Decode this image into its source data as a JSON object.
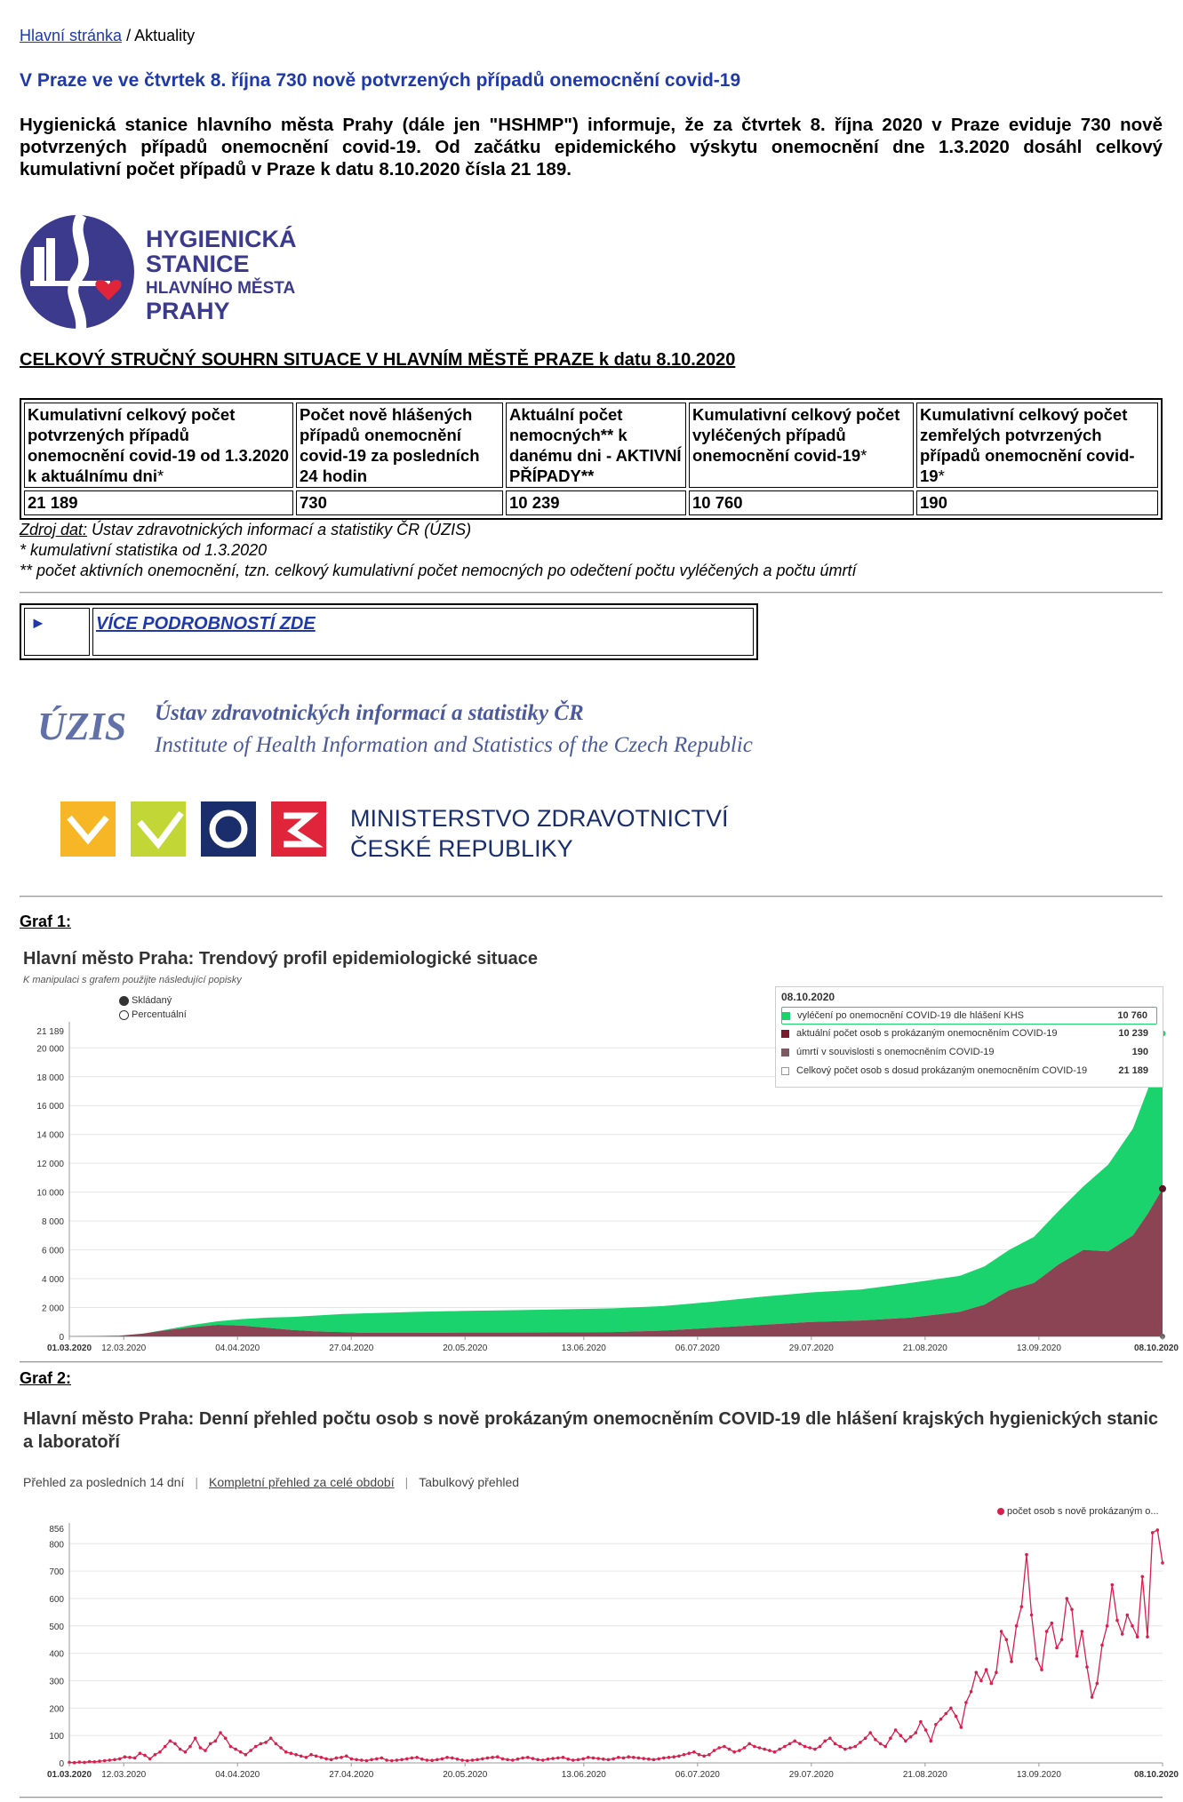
{
  "breadcrumb": {
    "home": "Hlavní stránka",
    "sep": "/",
    "current": "Aktuality"
  },
  "article": {
    "title": "V Praze ve ve čtvrtek 8. října 730 nově potvrzených případů onemocnění covid-19",
    "lead": "Hygienická stanice hlavního města Prahy (dále jen \"HSHMP\") informuje, že za čtvrtek 8. října 2020 v Praze eviduje 730 nově potvrzených případů onemocnění covid-19. Od začátku epidemického výskytu onemocnění dne 1.3.2020 dosáhl celkový kumulativní počet případů v Praze k datu 8.10.2020 čísla 21 189."
  },
  "hs_logo": {
    "line1": "HYGIENICKÁ",
    "line2": "STANICE",
    "line3": "HLAVNÍHO MĚSTA",
    "line4": "PRAHY",
    "colors": {
      "text": "#3b3a8c",
      "circle": "#3b3a8c",
      "heart": "#e0243a"
    }
  },
  "summary": {
    "heading": "CELKOVÝ STRUČNÝ SOUHRN SITUACE V HLAVNÍM MĚSTĚ PRAZE k datu 8.10.2020",
    "headers": [
      {
        "text": "Kumulativní celkový počet potvrzených případů onemocnění covid-19 od 1.3.2020 k aktuálnímu dni",
        "mark": "*"
      },
      {
        "text": "Počet nově hlášených případů onemocnění covid-19 za posledních 24 hodin",
        "mark": ""
      },
      {
        "text": "Aktuální počet nemocných** k danému dni  - AKTIVNÍ PŘÍPADY**",
        "mark": ""
      },
      {
        "text": "Kumulativní celkový počet vyléčených případů onemocnění covid-19",
        "mark": "*"
      },
      {
        "text": "Kumulativní celkový počet zemřelých potvrzených případů onemocnění covid-19",
        "mark": "*"
      }
    ],
    "values": [
      "21 189",
      "730",
      "10 239",
      "10 760",
      "190"
    ]
  },
  "notes": {
    "source_label": "Zdroj dat:",
    "source_text": " Ústav zdravotnických informací a statistiky ČR (ÚZIS)",
    "note1": "* kumulativní statistika od 1.3.2020",
    "note2": "** počet aktivních onemocnění, tzn. celkový kumulativní počet nemocných po odečtení počtu vyléčených a počtu úmrtí"
  },
  "more": {
    "arrow": "►",
    "label": "VÍCE PODROBNOSTÍ ZDE"
  },
  "uzis": {
    "abbr": "ÚZIS",
    "line1": "Ústav zdravotnických informací a statistiky ČR",
    "line2": "Institute of Health Information and Statistics of the Czech Republic"
  },
  "mzcr": {
    "line1": "MINISTERSTVO ZDRAVOTNICTVÍ",
    "line2": "ČESKÉ REPUBLIKY"
  },
  "graf1": {
    "label": "Graf 1:",
    "title": "Hlavní město Praha: Trendový profil epidemiologické situace",
    "subtitle": "K manipulaci s grafem použijte následující popisky",
    "radio_stacked": "Skládaný",
    "radio_percent": "Percentuální",
    "legend": {
      "date": "08.10.2020",
      "rows": [
        {
          "name": "vyléčení po onemocnění COVID-19 dle hlášení KHS",
          "value": "10 760",
          "color": "#1bd36c"
        },
        {
          "name": "aktuální počet osob s prokázaným onemocněním COVID-19",
          "value": "10 239",
          "color": "#7a1a2e"
        },
        {
          "name": "úmrtí v souvislosti s onemocněním COVID-19",
          "value": "190",
          "color": "#7b5a62"
        },
        {
          "name": "Celkový počet osob s dosud prokázaným onemocněním COVID-19",
          "value": "21 189",
          "color": "#ffffff"
        }
      ]
    }
  },
  "graf2": {
    "label": "Graf 2:",
    "title": "Hlavní město Praha: Denní přehled počtu osob s nově prokázaným onemocněním COVID-19 dle hlášení krajských hygienických stanic a laboratoří",
    "tabs": [
      "Přehled za posledních 14 dní",
      "Kompletní přehled za celé období",
      "Tabulkový přehled"
    ],
    "legend": "počet osob s nově prokázaným o..."
  },
  "chart_data": [
    {
      "type": "area",
      "title": "Hlavní město Praha: Trendový profil epidemiologické situace",
      "x_ticks": [
        "01.03.2020",
        "12.03.2020",
        "04.04.2020",
        "27.04.2020",
        "20.05.2020",
        "13.06.2020",
        "06.07.2020",
        "29.07.2020",
        "21.08.2020",
        "13.09.2020",
        "08.10.2020"
      ],
      "x_tick_days": [
        0,
        11,
        34,
        57,
        80,
        104,
        127,
        150,
        173,
        196,
        221
      ],
      "y_ticks": [
        0,
        2000,
        4000,
        6000,
        8000,
        10000,
        12000,
        14000,
        16000,
        18000,
        20000
      ],
      "y_ticks_labels": [
        "0",
        "2 000",
        "4 000",
        "6 000",
        "8 000",
        "10 000",
        "12 000",
        "14 000",
        "16 000",
        "18 000",
        "20 000"
      ],
      "y_max_label": "21 189",
      "ylim": [
        0,
        21189
      ],
      "series": [
        {
          "name": "aktuální počet osob s prokázaným onemocněním COVID-19",
          "x": [
            0,
            5,
            10,
            15,
            20,
            25,
            30,
            35,
            40,
            45,
            50,
            55,
            60,
            70,
            80,
            90,
            100,
            110,
            120,
            130,
            140,
            150,
            160,
            170,
            180,
            185,
            190,
            195,
            200,
            205,
            210,
            215,
            218,
            221
          ],
          "values": [
            0,
            20,
            50,
            200,
            450,
            650,
            800,
            750,
            600,
            450,
            350,
            300,
            250,
            250,
            270,
            270,
            280,
            300,
            400,
            600,
            800,
            1000,
            1100,
            1300,
            1700,
            2200,
            3200,
            3700,
            5000,
            6000,
            5900,
            7000,
            8500,
            10239
          ]
        },
        {
          "name": "vyléčení po onemocnění COVID-19 dle hlášení KHS",
          "x": [
            0,
            5,
            10,
            15,
            20,
            25,
            30,
            35,
            40,
            45,
            50,
            55,
            60,
            70,
            80,
            90,
            100,
            110,
            120,
            130,
            140,
            150,
            160,
            170,
            180,
            185,
            190,
            195,
            200,
            205,
            210,
            215,
            218,
            221
          ],
          "values": [
            0,
            0,
            0,
            0,
            50,
            150,
            250,
            450,
            700,
            900,
            1100,
            1250,
            1350,
            1450,
            1500,
            1550,
            1600,
            1650,
            1700,
            1800,
            1950,
            2050,
            2150,
            2400,
            2500,
            2650,
            2800,
            3200,
            3700,
            4400,
            6000,
            7400,
            8600,
            10760
          ]
        }
      ]
    },
    {
      "type": "line",
      "title": "Hlavní město Praha: Denní přehled počtu osob s nově prokázaným onemocněním COVID-19 dle hlášení krajských hygienických stanic a laboratoří",
      "x_ticks": [
        "01.03.2020",
        "12.03.2020",
        "04.04.2020",
        "27.04.2020",
        "20.05.2020",
        "13.06.2020",
        "06.07.2020",
        "29.07.2020",
        "21.08.2020",
        "13.09.2020",
        "08.10.2020"
      ],
      "x_tick_days": [
        0,
        11,
        34,
        57,
        80,
        104,
        127,
        150,
        173,
        196,
        221
      ],
      "y_ticks": [
        0,
        100,
        200,
        300,
        400,
        500,
        600,
        700,
        800
      ],
      "y_max_label": "856",
      "ylim": [
        0,
        856
      ],
      "series": [
        {
          "name": "počet osob s nově prokázaným o...",
          "values": [
            2,
            1,
            3,
            2,
            5,
            4,
            6,
            8,
            10,
            12,
            15,
            22,
            20,
            18,
            35,
            28,
            15,
            30,
            40,
            60,
            80,
            70,
            50,
            40,
            60,
            90,
            55,
            45,
            70,
            80,
            110,
            90,
            60,
            50,
            40,
            30,
            45,
            60,
            70,
            75,
            90,
            70,
            55,
            40,
            35,
            30,
            25,
            20,
            30,
            25,
            20,
            15,
            12,
            18,
            20,
            25,
            15,
            12,
            10,
            8,
            12,
            15,
            18,
            10,
            8,
            10,
            12,
            15,
            18,
            20,
            14,
            10,
            9,
            12,
            15,
            20,
            18,
            14,
            10,
            8,
            10,
            12,
            15,
            18,
            20,
            22,
            15,
            12,
            10,
            14,
            18,
            20,
            16,
            12,
            10,
            14,
            16,
            18,
            20,
            14,
            10,
            12,
            15,
            20,
            18,
            16,
            14,
            12,
            15,
            20,
            18,
            22,
            20,
            18,
            16,
            14,
            12,
            15,
            18,
            20,
            22,
            25,
            30,
            35,
            40,
            30,
            25,
            30,
            45,
            55,
            60,
            50,
            40,
            45,
            55,
            70,
            60,
            55,
            50,
            45,
            40,
            50,
            60,
            70,
            80,
            70,
            60,
            55,
            50,
            60,
            80,
            90,
            70,
            60,
            50,
            55,
            60,
            75,
            90,
            110,
            85,
            70,
            60,
            90,
            120,
            100,
            80,
            95,
            110,
            150,
            120,
            80,
            140,
            160,
            180,
            200,
            170,
            130,
            220,
            260,
            330,
            300,
            340,
            290,
            330,
            480,
            450,
            370,
            500,
            570,
            760,
            540,
            380,
            340,
            480,
            510,
            420,
            450,
            600,
            560,
            390,
            480,
            350,
            240,
            290,
            430,
            500,
            650,
            520,
            470,
            540,
            500,
            460,
            680,
            460,
            840,
            850,
            730
          ]
        }
      ]
    }
  ]
}
